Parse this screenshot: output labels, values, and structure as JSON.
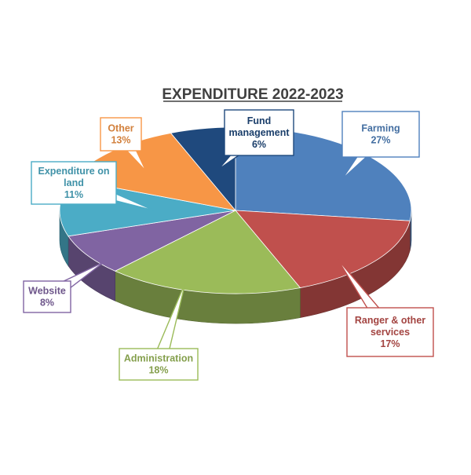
{
  "chart_data": {
    "type": "pie",
    "title": "EXPENDITURE 2022-2023",
    "slices": [
      {
        "label": "Farming",
        "value": 27,
        "display": "27%",
        "color": "#4f81bd"
      },
      {
        "label": "Ranger & other services",
        "value": 17,
        "display": "17%",
        "color": "#c0504d"
      },
      {
        "label": "Administration",
        "value": 18,
        "display": "18%",
        "color": "#9bbb59"
      },
      {
        "label": "Website",
        "value": 8,
        "display": "8%",
        "color": "#8064a2"
      },
      {
        "label": "Expenditure on land",
        "value": 11,
        "display": "11%",
        "color": "#4bacc6"
      },
      {
        "label": "Other",
        "value": 13,
        "display": "13%",
        "color": "#f79646"
      },
      {
        "label": "Fund management",
        "value": 6,
        "display": "6%",
        "color": "#1f497d"
      }
    ],
    "legend": "none",
    "data_labels": "callouts"
  }
}
